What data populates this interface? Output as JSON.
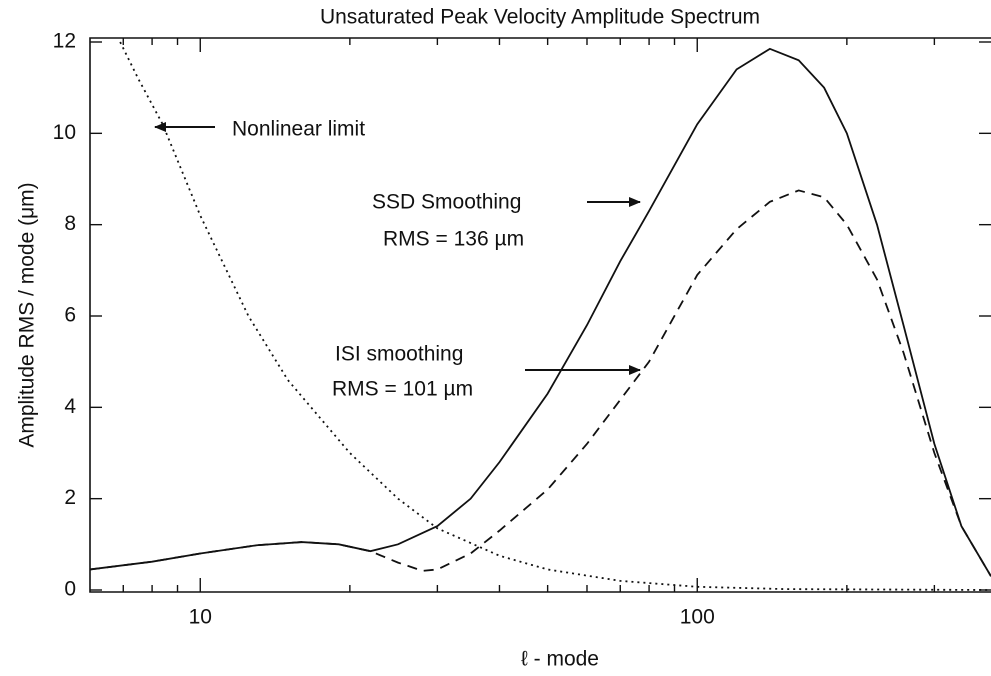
{
  "chart_data": {
    "type": "line",
    "title": "Unsaturated Peak Velocity Amplitude Spectrum",
    "xlabel": "ℓ - mode",
    "ylabel": "Amplitude RMS / mode (μm)",
    "xscale": "log",
    "xlim": [
      6,
      390
    ],
    "ylim": [
      0,
      12
    ],
    "xticks": [
      10,
      100
    ],
    "xminorticks": [
      7,
      8,
      9,
      20,
      30,
      40,
      50,
      60,
      70,
      80,
      90,
      200,
      300
    ],
    "yticks": [
      0,
      2,
      4,
      6,
      8,
      10,
      12
    ],
    "series": [
      {
        "line_style": "solid",
        "color": "#111111",
        "x": [
          6,
          8,
          10,
          13,
          16,
          19,
          22,
          25,
          30,
          35,
          40,
          50,
          60,
          70,
          80,
          100,
          120,
          140,
          160,
          180,
          200,
          230,
          260,
          300,
          340,
          390
        ],
        "values": [
          0.45,
          0.62,
          0.8,
          0.98,
          1.05,
          1.0,
          0.85,
          1.0,
          1.4,
          2.0,
          2.8,
          4.3,
          5.8,
          7.2,
          8.3,
          10.2,
          11.4,
          11.85,
          11.6,
          11.0,
          10.0,
          8.0,
          5.8,
          3.2,
          1.4,
          0.3
        ]
      },
      {
        "line_style": "dashed",
        "color": "#111111",
        "x": [
          6,
          8,
          10,
          13,
          16,
          19,
          22,
          25,
          28,
          30,
          35,
          40,
          50,
          60,
          80,
          100,
          120,
          140,
          160,
          180,
          200,
          230,
          260,
          300,
          340,
          390
        ],
        "values": [
          0.45,
          0.62,
          0.8,
          0.98,
          1.05,
          1.0,
          0.85,
          0.6,
          0.42,
          0.45,
          0.8,
          1.3,
          2.2,
          3.2,
          5.0,
          6.9,
          7.9,
          8.5,
          8.75,
          8.6,
          8.0,
          6.8,
          5.2,
          3.0,
          1.4,
          0.3
        ]
      },
      {
        "line_style": "dotted",
        "color": "#111111",
        "x": [
          6.9,
          7.5,
          8.4,
          10,
          12.5,
          15,
          20,
          25,
          30,
          40,
          50,
          70,
          100,
          150,
          390
        ],
        "values": [
          12,
          11.2,
          10.2,
          8.2,
          6.0,
          4.6,
          3.0,
          2.0,
          1.35,
          0.75,
          0.45,
          0.2,
          0.07,
          0.02,
          0
        ]
      }
    ],
    "annotations": [
      "Nonlinear limit",
      "SSD Smoothing",
      "RMS = 136 µm",
      "ISI smoothing",
      "RMS = 101 µm"
    ]
  }
}
